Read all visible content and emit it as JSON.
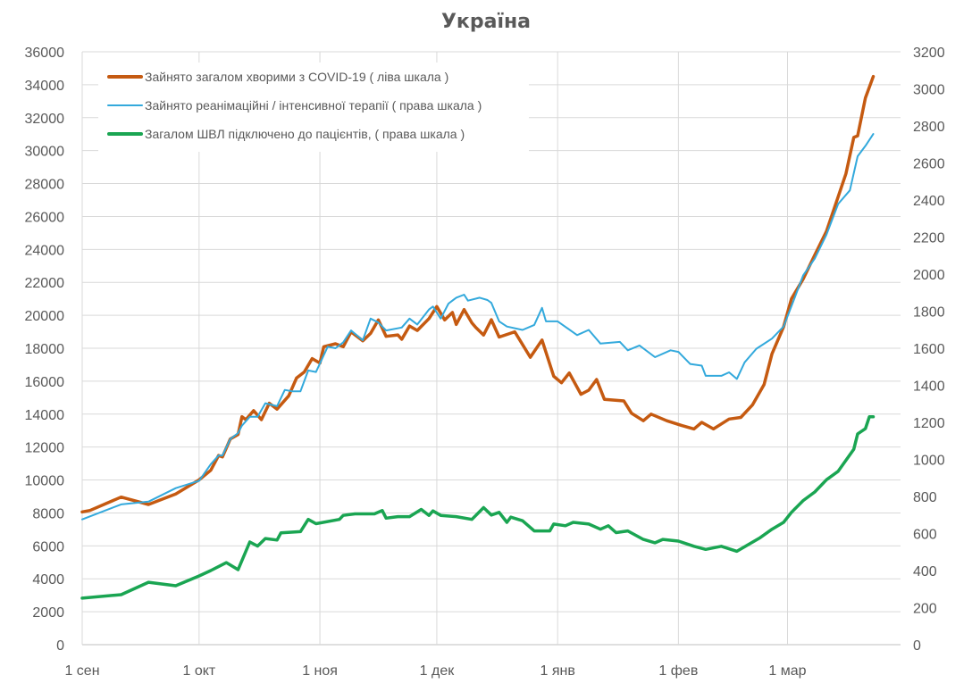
{
  "chart_data": {
    "type": "line",
    "title": "Україна",
    "x_ticks": [
      {
        "date": "09-01",
        "label": "1 сен"
      },
      {
        "date": "10-01",
        "label": "1 окт"
      },
      {
        "date": "11-01",
        "label": "1 ноя"
      },
      {
        "date": "12-01",
        "label": "1 дек"
      },
      {
        "date": "01-01",
        "label": "1 янв"
      },
      {
        "date": "02-01",
        "label": "1 фев"
      },
      {
        "date": "03-01",
        "label": "1 мар"
      }
    ],
    "xlim": [
      "09-01",
      "03-30"
    ],
    "y_left": {
      "min": 0,
      "max": 36000,
      "step": 2000,
      "ticks": [
        "0",
        "2000",
        "4000",
        "6000",
        "8000",
        "10000",
        "12000",
        "14000",
        "16000",
        "18000",
        "20000",
        "22000",
        "24000",
        "26000",
        "28000",
        "30000",
        "32000",
        "34000",
        "36000"
      ]
    },
    "y_right": {
      "min": 0,
      "max": 3200,
      "step": 200,
      "ticks": [
        "0",
        "200",
        "400",
        "600",
        "800",
        "1000",
        "1200",
        "1400",
        "1600",
        "1800",
        "2000",
        "2200",
        "2400",
        "2600",
        "2800",
        "3000",
        "3200"
      ]
    },
    "grid": true,
    "legend_position": "top-left",
    "series": [
      {
        "name": "Зайнято загалом хворими з COVID-19 ( ліва шкала )",
        "axis": "left",
        "color": "#C55A11",
        "points": [
          [
            "09-01",
            8060
          ],
          [
            "09-03",
            8150
          ],
          [
            "09-11",
            8960
          ],
          [
            "09-18",
            8510
          ],
          [
            "09-25",
            9150
          ],
          [
            "10-01",
            10010
          ],
          [
            "10-04",
            10590
          ],
          [
            "10-05",
            11040
          ],
          [
            "10-06",
            11490
          ],
          [
            "10-07",
            11400
          ],
          [
            "10-09",
            12490
          ],
          [
            "10-11",
            12760
          ],
          [
            "10-12",
            13840
          ],
          [
            "10-13",
            13660
          ],
          [
            "10-15",
            14210
          ],
          [
            "10-17",
            13660
          ],
          [
            "10-19",
            14660
          ],
          [
            "10-21",
            14300
          ],
          [
            "10-24",
            15110
          ],
          [
            "10-26",
            16190
          ],
          [
            "10-28",
            16560
          ],
          [
            "10-30",
            17370
          ],
          [
            "11-01",
            17100
          ],
          [
            "11-02",
            18090
          ],
          [
            "11-05",
            18270
          ],
          [
            "11-07",
            18090
          ],
          [
            "11-09",
            18990
          ],
          [
            "11-12",
            18450
          ],
          [
            "11-14",
            18900
          ],
          [
            "11-16",
            19720
          ],
          [
            "11-18",
            18720
          ],
          [
            "11-21",
            18810
          ],
          [
            "11-22",
            18540
          ],
          [
            "11-24",
            19350
          ],
          [
            "11-26",
            19080
          ],
          [
            "11-29",
            19800
          ],
          [
            "12-01",
            20530
          ],
          [
            "12-03",
            19720
          ],
          [
            "12-05",
            20170
          ],
          [
            "12-06",
            19450
          ],
          [
            "12-08",
            20350
          ],
          [
            "12-10",
            19540
          ],
          [
            "12-11",
            19260
          ],
          [
            "12-13",
            18800
          ],
          [
            "12-15",
            19730
          ],
          [
            "12-17",
            18680
          ],
          [
            "12-21",
            19000
          ],
          [
            "12-25",
            17450
          ],
          [
            "12-28",
            18500
          ],
          [
            "12-31",
            16300
          ],
          [
            "01-02",
            15900
          ],
          [
            "01-04",
            16500
          ],
          [
            "01-07",
            15200
          ],
          [
            "01-09",
            15450
          ],
          [
            "01-11",
            16100
          ],
          [
            "01-13",
            14900
          ],
          [
            "01-18",
            14800
          ],
          [
            "01-20",
            14050
          ],
          [
            "01-23",
            13600
          ],
          [
            "01-25",
            14000
          ],
          [
            "01-29",
            13600
          ],
          [
            "02-02",
            13300
          ],
          [
            "02-05",
            13100
          ],
          [
            "02-07",
            13500
          ],
          [
            "02-10",
            13100
          ],
          [
            "02-12",
            13400
          ],
          [
            "02-14",
            13700
          ],
          [
            "02-17",
            13800
          ],
          [
            "02-20",
            14550
          ],
          [
            "02-23",
            15800
          ],
          [
            "02-25",
            17660
          ],
          [
            "02-28",
            19300
          ],
          [
            "03-02",
            21000
          ],
          [
            "03-05",
            22200
          ],
          [
            "03-08",
            23660
          ],
          [
            "03-11",
            25100
          ],
          [
            "03-14",
            27200
          ],
          [
            "03-16",
            28600
          ],
          [
            "03-18",
            30800
          ],
          [
            "03-19",
            30900
          ],
          [
            "03-21",
            33200
          ],
          [
            "03-23",
            34500
          ]
        ]
      },
      {
        "name": "Зайнято реанімаційні / інтенсивної терапії ( права шкала )",
        "axis": "right",
        "color": "#33A9DC",
        "points": [
          [
            "09-01",
            676
          ],
          [
            "09-11",
            757
          ],
          [
            "09-18",
            772
          ],
          [
            "09-25",
            845
          ],
          [
            "10-01",
            885
          ],
          [
            "10-04",
            974
          ],
          [
            "10-06",
            1021
          ],
          [
            "10-07",
            1021
          ],
          [
            "10-09",
            1110
          ],
          [
            "10-11",
            1142
          ],
          [
            "10-12",
            1182
          ],
          [
            "10-14",
            1230
          ],
          [
            "10-16",
            1230
          ],
          [
            "10-18",
            1303
          ],
          [
            "10-21",
            1287
          ],
          [
            "10-23",
            1375
          ],
          [
            "10-25",
            1367
          ],
          [
            "10-27",
            1367
          ],
          [
            "10-29",
            1480
          ],
          [
            "10-31",
            1472
          ],
          [
            "11-03",
            1608
          ],
          [
            "11-05",
            1600
          ],
          [
            "11-07",
            1632
          ],
          [
            "11-09",
            1696
          ],
          [
            "11-12",
            1643
          ],
          [
            "11-14",
            1760
          ],
          [
            "11-16",
            1739
          ],
          [
            "11-18",
            1696
          ],
          [
            "11-22",
            1712
          ],
          [
            "11-24",
            1760
          ],
          [
            "11-26",
            1728
          ],
          [
            "11-29",
            1809
          ],
          [
            "11-30",
            1825
          ],
          [
            "12-02",
            1760
          ],
          [
            "12-04",
            1841
          ],
          [
            "12-06",
            1873
          ],
          [
            "12-08",
            1889
          ],
          [
            "12-09",
            1857
          ],
          [
            "12-12",
            1873
          ],
          [
            "12-14",
            1860
          ],
          [
            "12-15",
            1845
          ],
          [
            "12-17",
            1745
          ],
          [
            "12-19",
            1717
          ],
          [
            "12-23",
            1699
          ],
          [
            "12-26",
            1726
          ],
          [
            "12-28",
            1818
          ],
          [
            "12-29",
            1745
          ],
          [
            "01-01",
            1745
          ],
          [
            "01-06",
            1671
          ],
          [
            "01-09",
            1699
          ],
          [
            "01-12",
            1625
          ],
          [
            "01-17",
            1634
          ],
          [
            "01-19",
            1589
          ],
          [
            "01-22",
            1615
          ],
          [
            "01-26",
            1552
          ],
          [
            "01-30",
            1589
          ],
          [
            "02-01",
            1580
          ],
          [
            "02-04",
            1515
          ],
          [
            "02-07",
            1506
          ],
          [
            "02-08",
            1451
          ],
          [
            "02-12",
            1451
          ],
          [
            "02-14",
            1470
          ],
          [
            "02-16",
            1434
          ],
          [
            "02-18",
            1524
          ],
          [
            "02-21",
            1597
          ],
          [
            "02-25",
            1652
          ],
          [
            "02-28",
            1717
          ],
          [
            "03-02",
            1827
          ],
          [
            "03-05",
            1993
          ],
          [
            "03-08",
            2084
          ],
          [
            "03-11",
            2213
          ],
          [
            "03-14",
            2379
          ],
          [
            "03-17",
            2452
          ],
          [
            "03-19",
            2636
          ],
          [
            "03-21",
            2692
          ],
          [
            "03-23",
            2756
          ]
        ]
      },
      {
        "name": "Загалом ШВЛ  підключено до пацієнтів, ( права шкала )",
        "axis": "right",
        "color": "#1AA552",
        "points": [
          [
            "09-01",
            251
          ],
          [
            "09-11",
            270
          ],
          [
            "09-18",
            337
          ],
          [
            "09-25",
            318
          ],
          [
            "10-01",
            371
          ],
          [
            "10-04",
            400
          ],
          [
            "10-08",
            443
          ],
          [
            "10-11",
            405
          ],
          [
            "10-14",
            554
          ],
          [
            "10-16",
            532
          ],
          [
            "10-18",
            573
          ],
          [
            "10-21",
            565
          ],
          [
            "10-22",
            604
          ],
          [
            "10-27",
            610
          ],
          [
            "10-29",
            676
          ],
          [
            "10-31",
            653
          ],
          [
            "11-06",
            676
          ],
          [
            "11-07",
            698
          ],
          [
            "11-10",
            706
          ],
          [
            "11-15",
            706
          ],
          [
            "11-17",
            724
          ],
          [
            "11-18",
            683
          ],
          [
            "11-21",
            691
          ],
          [
            "11-24",
            691
          ],
          [
            "11-27",
            730
          ],
          [
            "11-29",
            698
          ],
          [
            "11-30",
            722
          ],
          [
            "12-02",
            698
          ],
          [
            "12-06",
            691
          ],
          [
            "12-10",
            676
          ],
          [
            "12-13",
            740
          ],
          [
            "12-15",
            700
          ],
          [
            "12-17",
            714
          ],
          [
            "12-19",
            660
          ],
          [
            "12-20",
            688
          ],
          [
            "12-23",
            669
          ],
          [
            "12-26",
            614
          ],
          [
            "12-30",
            614
          ],
          [
            "12-31",
            651
          ],
          [
            "01-03",
            642
          ],
          [
            "01-05",
            660
          ],
          [
            "01-09",
            651
          ],
          [
            "01-12",
            623
          ],
          [
            "01-14",
            642
          ],
          [
            "01-16",
            605
          ],
          [
            "01-19",
            614
          ],
          [
            "01-23",
            568
          ],
          [
            "01-26",
            550
          ],
          [
            "01-28",
            568
          ],
          [
            "02-01",
            559
          ],
          [
            "02-05",
            531
          ],
          [
            "02-08",
            514
          ],
          [
            "02-12",
            531
          ],
          [
            "02-16",
            504
          ],
          [
            "02-19",
            541
          ],
          [
            "02-22",
            578
          ],
          [
            "02-25",
            623
          ],
          [
            "02-28",
            660
          ],
          [
            "03-02",
            714
          ],
          [
            "03-05",
            778
          ],
          [
            "03-08",
            824
          ],
          [
            "03-11",
            890
          ],
          [
            "03-14",
            936
          ],
          [
            "03-18",
            1055
          ],
          [
            "03-19",
            1138
          ],
          [
            "03-21",
            1166
          ],
          [
            "03-22",
            1230
          ],
          [
            "03-23",
            1230
          ]
        ]
      }
    ]
  }
}
